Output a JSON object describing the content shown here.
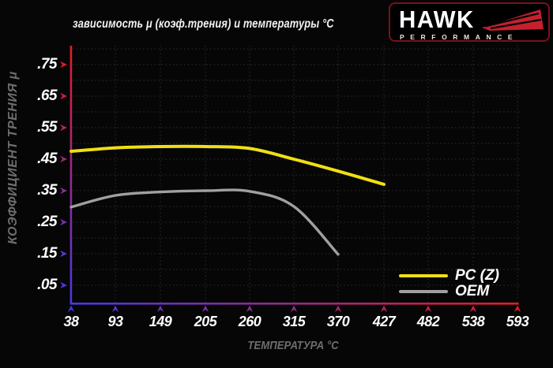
{
  "title": "зависимость μ (коэф.трения) и температуры °C",
  "logo": {
    "brand": "HAWK",
    "subbrand": "PERFORMANCE",
    "accent_red": "#c6202e"
  },
  "chart_data": {
    "type": "line",
    "title": "зависимость μ (коэф.трения) и температуры °C",
    "xlabel": "ТЕМПЕРАТУРА °C",
    "ylabel": "КОЭФФИЦИЕНТ ТРЕНИЯ μ",
    "x_ticks": [
      38,
      93,
      149,
      205,
      260,
      315,
      370,
      427,
      482,
      538,
      593
    ],
    "y_tick_labels": [
      ".75",
      ".65",
      ".55",
      ".45",
      ".35",
      ".25",
      ".15",
      ".05"
    ],
    "y_tick_values": [
      0.75,
      0.65,
      0.55,
      0.45,
      0.35,
      0.25,
      0.15,
      0.05
    ],
    "xlim": [
      38,
      593
    ],
    "ylim": [
      0,
      0.78
    ],
    "grid": true,
    "legend_position": "bottom-right",
    "axis_gradient": {
      "hot": "#e81a28",
      "cold": "#4739e6"
    },
    "series": [
      {
        "name": "PC (Z)",
        "color": "#f0df12",
        "x": [
          38,
          93,
          149,
          205,
          260,
          315,
          370,
          427
        ],
        "y": [
          0.475,
          0.486,
          0.49,
          0.49,
          0.484,
          0.45,
          0.412,
          0.37
        ]
      },
      {
        "name": "OEM",
        "color": "#a0a0a0",
        "x": [
          38,
          93,
          149,
          205,
          260,
          315,
          370
        ],
        "y": [
          0.298,
          0.335,
          0.346,
          0.35,
          0.348,
          0.3,
          0.148
        ]
      }
    ]
  }
}
